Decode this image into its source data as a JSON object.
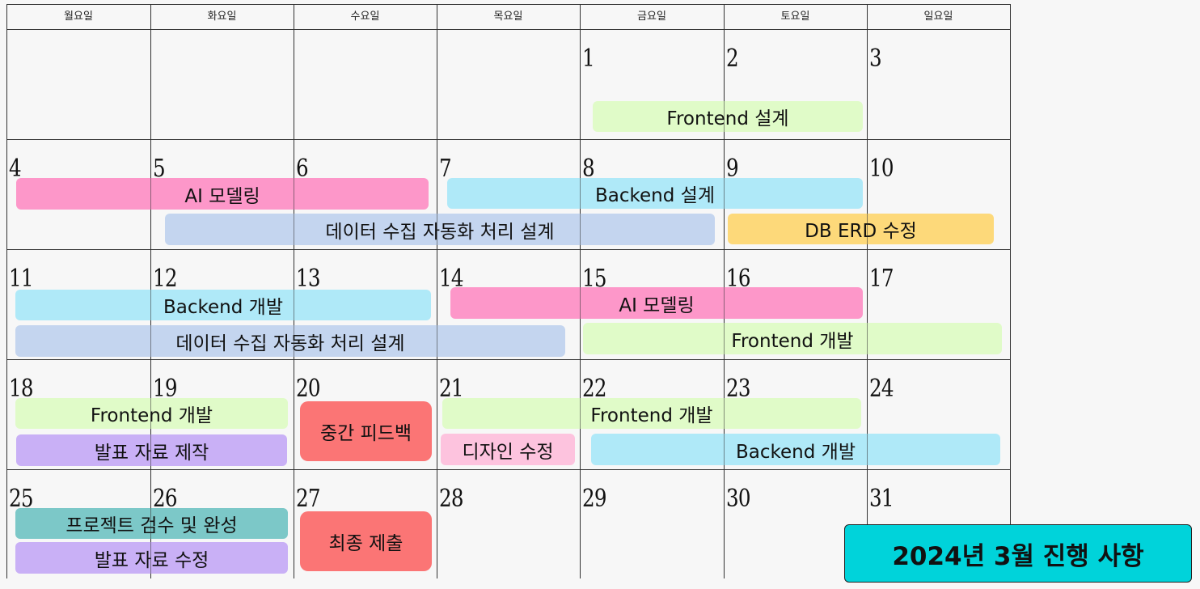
{
  "title": "2024년 3월 진행 사항",
  "weekdays": [
    "월요일",
    "화요일",
    "수요일",
    "목요일",
    "금요일",
    "토요일",
    "일요일"
  ],
  "weeks": [
    [
      "",
      "",
      "",
      "",
      "1",
      "2",
      "3"
    ],
    [
      "4",
      "5",
      "6",
      "7",
      "8",
      "9",
      "10"
    ],
    [
      "11",
      "12",
      "13",
      "14",
      "15",
      "16",
      "17"
    ],
    [
      "18",
      "19",
      "20",
      "21",
      "22",
      "23",
      "24"
    ],
    [
      "25",
      "26",
      "27",
      "28",
      "29",
      "30",
      "31"
    ]
  ],
  "colors": {
    "green": "#e0fbc8",
    "pink": "#fd97c9",
    "cyan": "#afe9f8",
    "blue": "#c4d5ef",
    "yellow": "#fdd97a",
    "purple": "#c9b0f6",
    "red": "#fb7575",
    "lightpink": "#fdc3de",
    "teal": "#7cc8c8",
    "title_bg": "#00d3da"
  },
  "events": [
    {
      "label": "Frontend 설계",
      "color": "green"
    },
    {
      "label": "AI 모델링",
      "color": "pink"
    },
    {
      "label": "Backend 설계",
      "color": "cyan"
    },
    {
      "label": "데이터 수집 자동화 처리 설계",
      "color": "blue"
    },
    {
      "label": "DB ERD 수정",
      "color": "yellow"
    },
    {
      "label": "Backend 개발",
      "color": "cyan"
    },
    {
      "label": "AI 모델링",
      "color": "pink"
    },
    {
      "label": "데이터 수집 자동화 처리 설계",
      "color": "blue"
    },
    {
      "label": "Frontend 개발",
      "color": "green"
    },
    {
      "label": "Frontend 개발",
      "color": "green"
    },
    {
      "label": "중간 피드백",
      "color": "red"
    },
    {
      "label": "Frontend 개발",
      "color": "green"
    },
    {
      "label": "발표 자료 제작",
      "color": "purple"
    },
    {
      "label": "디자인 수정",
      "color": "lightpink"
    },
    {
      "label": "Backend 개발",
      "color": "cyan"
    },
    {
      "label": "프로젝트 검수 및 완성",
      "color": "teal"
    },
    {
      "label": "최종 제출",
      "color": "red"
    },
    {
      "label": "발표 자료 수정",
      "color": "purple"
    }
  ]
}
